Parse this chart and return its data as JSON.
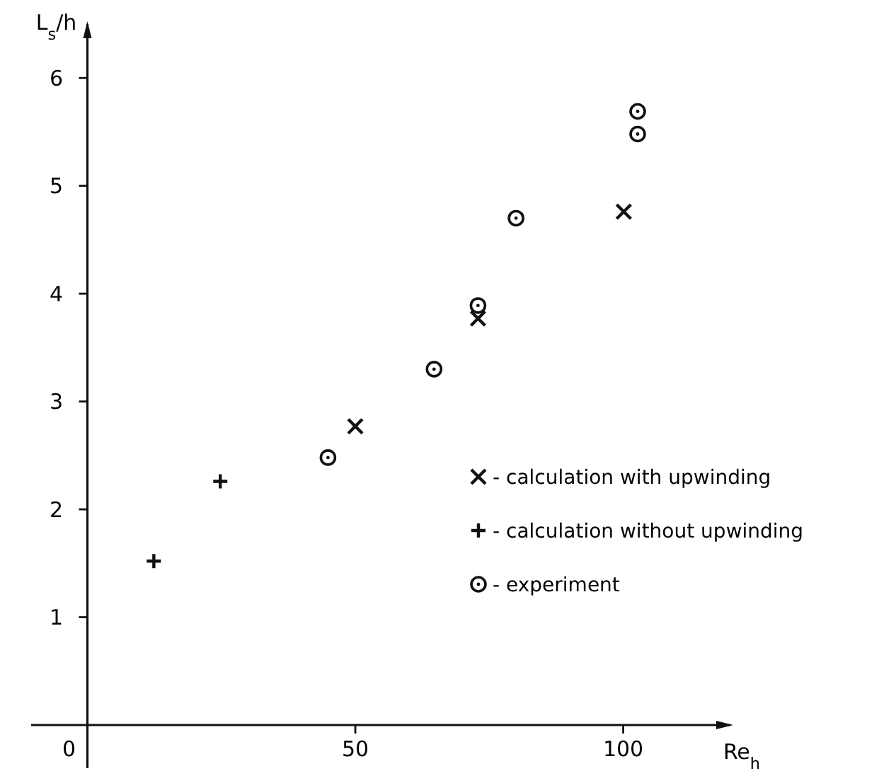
{
  "chart_data": {
    "type": "scatter",
    "xlabel": "Re$_{h}$",
    "ylabel": "L$_{s}$/h",
    "xlim": [
      -10.5,
      120
    ],
    "ylim": [
      -0.4,
      6.5
    ],
    "xticks": [
      0,
      50,
      100
    ],
    "yticks": [
      1,
      2,
      3,
      4,
      5,
      6
    ],
    "grid": false,
    "legend": "right",
    "series": [
      {
        "name": "- calculation with upwinding",
        "color": "#111111",
        "marker": "cross",
        "x": [
          50,
          72.9,
          100.1
        ],
        "values": [
          2.77,
          3.77,
          4.76
        ]
      },
      {
        "name": "- calculation without upwinding",
        "color": "#111111",
        "marker": "plus",
        "x": [
          12.4,
          24.8
        ],
        "values": [
          1.52,
          2.26
        ]
      },
      {
        "name": "- experiment",
        "color": "#111111",
        "marker": "circle",
        "x": [
          44.9,
          64.7,
          72.9,
          80.0,
          102.7,
          102.7
        ],
        "values": [
          2.48,
          3.3,
          3.89,
          4.7,
          5.48,
          5.69
        ]
      }
    ]
  }
}
